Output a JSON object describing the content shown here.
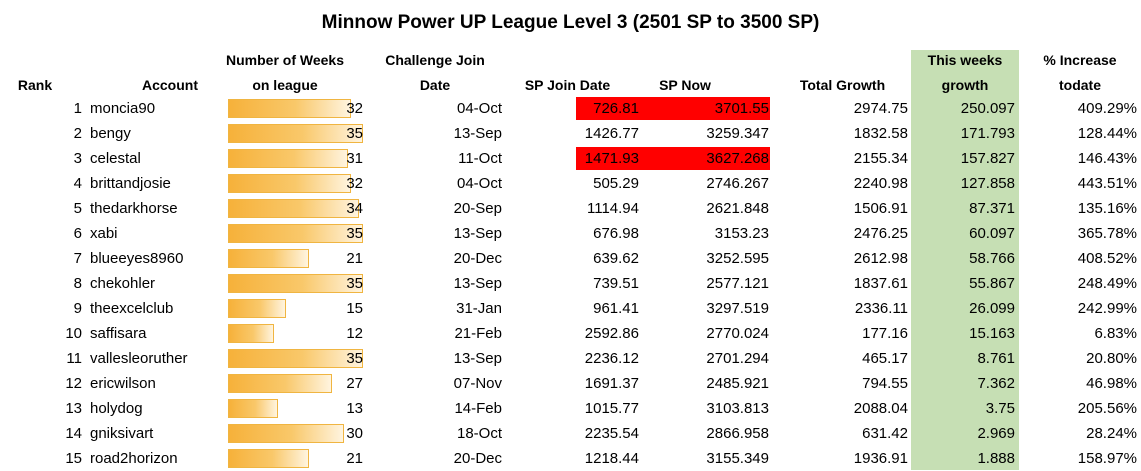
{
  "title": "Minnow Power UP League Level 3 (2501 SP to 3500 SP)",
  "headers": {
    "rank": "Rank",
    "account": "Account",
    "weeks_line1": "Number of Weeks",
    "weeks_line2": "on league",
    "join_line1": "Challenge Join",
    "join_line2": "Date",
    "sp_join": "SP Join Date",
    "sp_now": "SP Now",
    "total_growth": "Total Growth",
    "this_week_line1": "This weeks",
    "this_week_line2": "growth",
    "increase_line1": "% Increase",
    "increase_line2": "todate"
  },
  "colors": {
    "highlight_red": "#ff0000",
    "growth_column": "#c6dfb4",
    "bar_fill": "#f6b13a"
  },
  "rows": [
    {
      "rank": "1",
      "account": "moncia90",
      "weeks": "32",
      "join_date": "04-Oct",
      "sp_join": "726.81",
      "sp_now": "3701.55",
      "sp_now_highlight": true,
      "total_growth": "2974.75",
      "week_growth": "250.097",
      "increase": "409.29%"
    },
    {
      "rank": "2",
      "account": "bengy",
      "weeks": "35",
      "join_date": "13-Sep",
      "sp_join": "1426.77",
      "sp_now": "3259.347",
      "sp_now_highlight": false,
      "total_growth": "1832.58",
      "week_growth": "171.793",
      "increase": "128.44%"
    },
    {
      "rank": "3",
      "account": "celestal",
      "weeks": "31",
      "join_date": "11-Oct",
      "sp_join": "1471.93",
      "sp_now": "3627.268",
      "sp_now_highlight": true,
      "total_growth": "2155.34",
      "week_growth": "157.827",
      "increase": "146.43%"
    },
    {
      "rank": "4",
      "account": "brittandjosie",
      "weeks": "32",
      "join_date": "04-Oct",
      "sp_join": "505.29",
      "sp_now": "2746.267",
      "sp_now_highlight": false,
      "total_growth": "2240.98",
      "week_growth": "127.858",
      "increase": "443.51%"
    },
    {
      "rank": "5",
      "account": "thedarkhorse",
      "weeks": "34",
      "join_date": "20-Sep",
      "sp_join": "1114.94",
      "sp_now": "2621.848",
      "sp_now_highlight": false,
      "total_growth": "1506.91",
      "week_growth": "87.371",
      "increase": "135.16%"
    },
    {
      "rank": "6",
      "account": "xabi",
      "weeks": "35",
      "join_date": "13-Sep",
      "sp_join": "676.98",
      "sp_now": "3153.23",
      "sp_now_highlight": false,
      "total_growth": "2476.25",
      "week_growth": "60.097",
      "increase": "365.78%"
    },
    {
      "rank": "7",
      "account": "blueeyes8960",
      "weeks": "21",
      "join_date": "20-Dec",
      "sp_join": "639.62",
      "sp_now": "3252.595",
      "sp_now_highlight": false,
      "total_growth": "2612.98",
      "week_growth": "58.766",
      "increase": "408.52%"
    },
    {
      "rank": "8",
      "account": "chekohler",
      "weeks": "35",
      "join_date": "13-Sep",
      "sp_join": "739.51",
      "sp_now": "2577.121",
      "sp_now_highlight": false,
      "total_growth": "1837.61",
      "week_growth": "55.867",
      "increase": "248.49%"
    },
    {
      "rank": "9",
      "account": "theexcelclub",
      "weeks": "15",
      "join_date": "31-Jan",
      "sp_join": "961.41",
      "sp_now": "3297.519",
      "sp_now_highlight": false,
      "total_growth": "2336.11",
      "week_growth": "26.099",
      "increase": "242.99%"
    },
    {
      "rank": "10",
      "account": "saffisara",
      "weeks": "12",
      "join_date": "21-Feb",
      "sp_join": "2592.86",
      "sp_now": "2770.024",
      "sp_now_highlight": false,
      "total_growth": "177.16",
      "week_growth": "15.163",
      "increase": "6.83%"
    },
    {
      "rank": "11",
      "account": "vallesleoruther",
      "weeks": "35",
      "join_date": "13-Sep",
      "sp_join": "2236.12",
      "sp_now": "2701.294",
      "sp_now_highlight": false,
      "total_growth": "465.17",
      "week_growth": "8.761",
      "increase": "20.80%"
    },
    {
      "rank": "12",
      "account": "ericwilson",
      "weeks": "27",
      "join_date": "07-Nov",
      "sp_join": "1691.37",
      "sp_now": "2485.921",
      "sp_now_highlight": false,
      "total_growth": "794.55",
      "week_growth": "7.362",
      "increase": "46.98%"
    },
    {
      "rank": "13",
      "account": "holydog",
      "weeks": "13",
      "join_date": "14-Feb",
      "sp_join": "1015.77",
      "sp_now": "3103.813",
      "sp_now_highlight": false,
      "total_growth": "2088.04",
      "week_growth": "3.75",
      "increase": "205.56%"
    },
    {
      "rank": "14",
      "account": "gniksivart",
      "weeks": "30",
      "join_date": "18-Oct",
      "sp_join": "2235.54",
      "sp_now": "2866.958",
      "sp_now_highlight": false,
      "total_growth": "631.42",
      "week_growth": "2.969",
      "increase": "28.24%"
    },
    {
      "rank": "15",
      "account": "road2horizon",
      "weeks": "21",
      "join_date": "20-Dec",
      "sp_join": "1218.44",
      "sp_now": "3155.349",
      "sp_now_highlight": false,
      "total_growth": "1936.91",
      "week_growth": "1.888",
      "increase": "158.97%"
    }
  ]
}
